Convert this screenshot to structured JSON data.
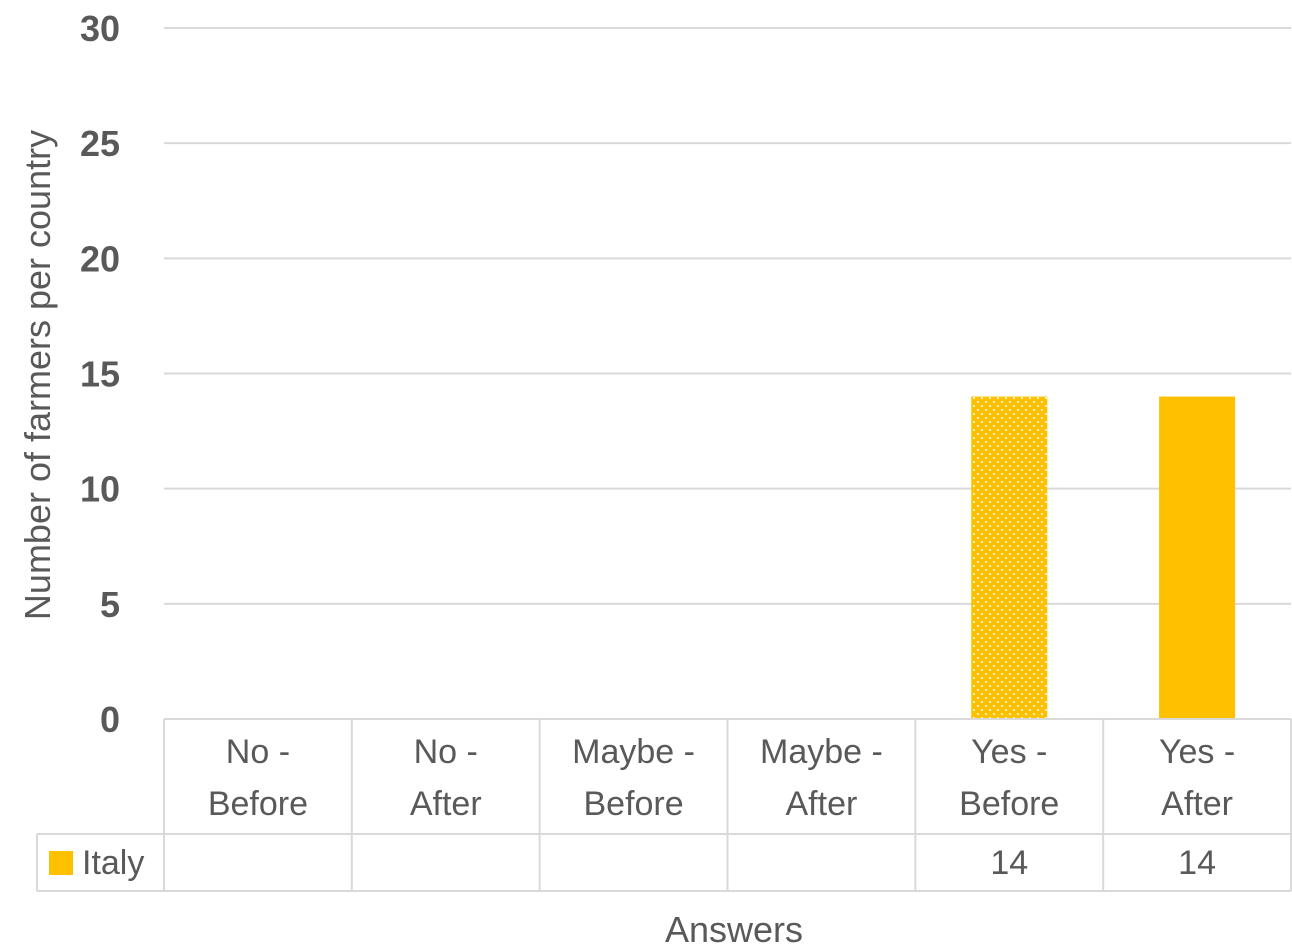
{
  "chart_data": {
    "type": "bar",
    "xlabel": "Answers",
    "ylabel": "Number of farmers per country",
    "ylim": [
      0,
      30
    ],
    "yticks": [
      0,
      5,
      10,
      15,
      20,
      25,
      30
    ],
    "grid": true,
    "legend": "data-table",
    "categories": [
      [
        "No -",
        "Before"
      ],
      [
        "No -",
        "After"
      ],
      [
        "Maybe -",
        "Before"
      ],
      [
        "Maybe -",
        "After"
      ],
      [
        "Yes -",
        "Before"
      ],
      [
        "Yes -",
        "After"
      ]
    ],
    "series": [
      {
        "name": "Italy",
        "color": "#FFC000",
        "values": [
          null,
          null,
          null,
          null,
          14,
          14
        ],
        "fill_patterns": [
          "solid",
          "solid",
          "solid",
          "solid",
          "dotted",
          "solid"
        ]
      }
    ]
  },
  "colors": {
    "text": "#595959",
    "grid": "#D9D9D9",
    "bar": "#FFC000"
  }
}
